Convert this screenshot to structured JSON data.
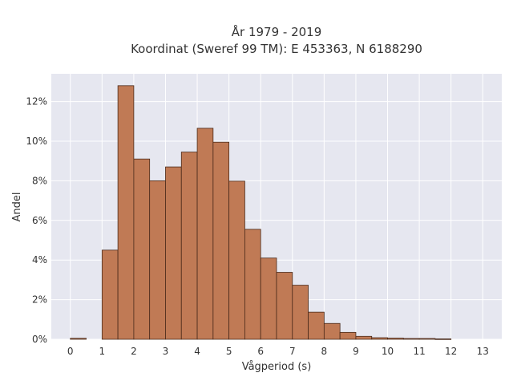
{
  "chart_data": {
    "type": "bar",
    "title_line1": "År 1979 - 2019",
    "title_line2": "Koordinat (Sweref 99 TM): E 453363, N 6188290",
    "xlabel": "Vågperiod (s)",
    "ylabel": "Andel",
    "bin_width": 0.5,
    "bin_starts": [
      0,
      0.5,
      1,
      1.5,
      2,
      2.5,
      3,
      3.5,
      4,
      4.5,
      5,
      5.5,
      6,
      6.5,
      7,
      7.5,
      8,
      8.5,
      9,
      9.5,
      10,
      10.5,
      11,
      11.5,
      12,
      12.5
    ],
    "values": [
      0.05,
      0,
      4.5,
      12.8,
      9.1,
      8.0,
      8.7,
      9.45,
      10.65,
      9.95,
      7.98,
      5.55,
      4.1,
      3.38,
      2.73,
      1.37,
      0.8,
      0.35,
      0.15,
      0.08,
      0.06,
      0.04,
      0.04,
      0.02,
      0,
      0
    ],
    "value_unit": "%",
    "xlim": [
      -0.6,
      13.6
    ],
    "ylim": [
      0,
      13.4
    ],
    "x_ticks": [
      "0",
      "1",
      "2",
      "3",
      "4",
      "5",
      "6",
      "7",
      "8",
      "9",
      "10",
      "11",
      "12",
      "13"
    ],
    "y_ticks": [
      "0%",
      "2%",
      "4%",
      "6%",
      "8%",
      "10%",
      "12%"
    ],
    "bar_color": "#c07a55",
    "bar_edge_color": "#4a2a1a",
    "plot_background": "#e6e7f0",
    "grid": true
  }
}
